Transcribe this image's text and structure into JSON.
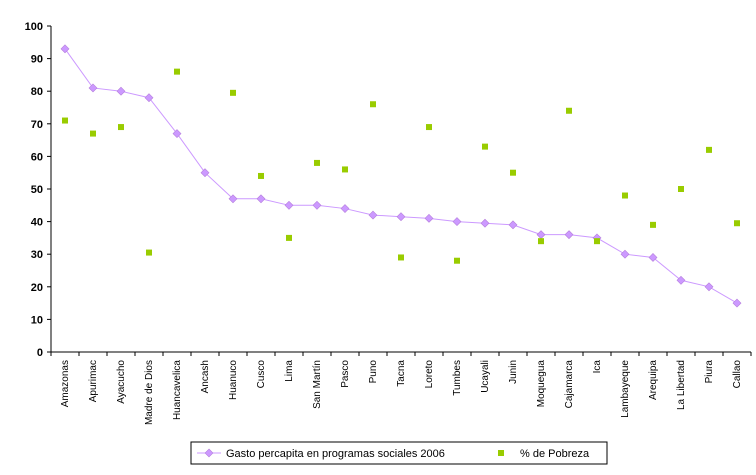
{
  "chart_data": {
    "type": "line",
    "title": "",
    "xlabel": "",
    "ylabel": "",
    "ylim": [
      0,
      100
    ],
    "yticks": [
      0,
      10,
      20,
      30,
      40,
      50,
      60,
      70,
      80,
      90,
      100
    ],
    "grid": false,
    "legend_position": "bottom",
    "categories": [
      "Amazonas",
      "Apurimac",
      "Ayacucho",
      "Madre de Dios",
      "Huancavelica",
      "Ancash",
      "Huanuco",
      "Cusco",
      "Lima",
      "San Martín",
      "Pasco",
      "Puno",
      "Tacna",
      "Loreto",
      "Tumbes",
      "Ucayali",
      "Junin",
      "Moquegua",
      "Cajamarca",
      "Ica",
      "Lambayeque",
      "Arequipa",
      "La Libertad",
      "Piura",
      "Callao"
    ],
    "series": [
      {
        "name": "Gasto percapita en programas sociales 2006",
        "type": "line",
        "marker": "diamond",
        "color": "#cc99ff",
        "values": [
          93,
          81,
          80,
          78,
          67,
          55,
          47,
          47,
          45,
          45,
          44,
          42,
          41.5,
          41,
          40,
          39.5,
          39,
          36,
          36,
          35,
          30,
          29,
          22,
          20,
          15
        ]
      },
      {
        "name": "% de Pobreza",
        "type": "scatter",
        "marker": "square",
        "color": "#99cc00",
        "values": [
          71,
          67,
          69,
          30.5,
          86,
          null,
          79.5,
          54,
          35,
          58,
          56,
          76,
          29,
          69,
          28,
          63,
          55,
          34,
          74,
          34,
          48,
          39,
          50,
          62,
          39.5
        ]
      }
    ]
  }
}
